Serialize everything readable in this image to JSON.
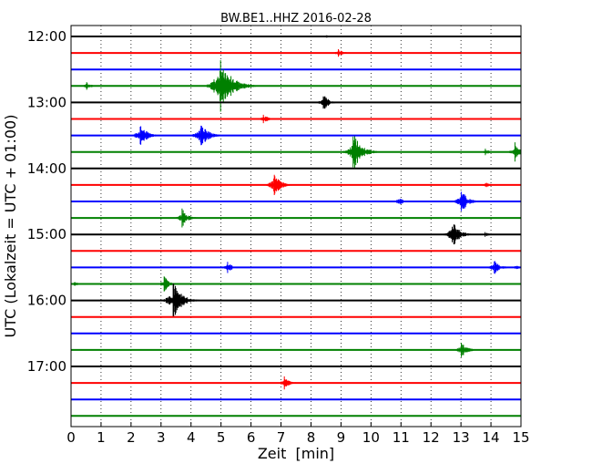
{
  "chart_data": {
    "type": "line",
    "title": "BW.BE1..HHZ 2016-02-28",
    "xlabel": "Zeit  [min]",
    "ylabel": "UTC (Lokalzeit = UTC + 01:00)",
    "xlim": [
      0,
      15
    ],
    "x_ticks": [
      0,
      1,
      2,
      3,
      4,
      5,
      6,
      7,
      8,
      9,
      10,
      11,
      12,
      13,
      14,
      15
    ],
    "y_tick_labels": [
      "12:00",
      "13:00",
      "14:00",
      "15:00",
      "16:00",
      "17:00"
    ],
    "trace_interval_minutes": 15,
    "grid": "vertical dotted at each minute",
    "traces": [
      {
        "start": "12:00",
        "color": "#000000",
        "events": [
          {
            "t": 8.5,
            "a": 2
          }
        ]
      },
      {
        "start": "12:15",
        "color": "#ff0000",
        "events": [
          {
            "t": 8.9,
            "a": 6
          }
        ]
      },
      {
        "start": "12:30",
        "color": "#0000ff",
        "events": []
      },
      {
        "start": "12:45",
        "color": "#008000",
        "events": [
          {
            "t": 0.5,
            "a": 5
          },
          {
            "t": 4.95,
            "a": 34
          }
        ]
      },
      {
        "start": "13:00",
        "color": "#000000",
        "events": [
          {
            "t": 8.4,
            "a": 10
          }
        ]
      },
      {
        "start": "13:15",
        "color": "#ff0000",
        "events": [
          {
            "t": 6.4,
            "a": 6
          }
        ]
      },
      {
        "start": "13:30",
        "color": "#0000ff",
        "events": [
          {
            "t": 2.3,
            "a": 14
          },
          {
            "t": 4.3,
            "a": 17
          }
        ]
      },
      {
        "start": "13:45",
        "color": "#008000",
        "events": [
          {
            "t": 9.4,
            "a": 22
          },
          {
            "t": 13.8,
            "a": 4
          },
          {
            "t": 14.8,
            "a": 11
          }
        ]
      },
      {
        "start": "14:00",
        "color": "#000000",
        "events": []
      },
      {
        "start": "14:15",
        "color": "#ff0000",
        "events": [
          {
            "t": 6.75,
            "a": 14
          },
          {
            "t": 13.8,
            "a": 4
          }
        ]
      },
      {
        "start": "14:30",
        "color": "#0000ff",
        "events": [
          {
            "t": 10.9,
            "a": 6
          },
          {
            "t": 13.0,
            "a": 14
          }
        ]
      },
      {
        "start": "14:45",
        "color": "#008000",
        "events": [
          {
            "t": 3.7,
            "a": 11
          }
        ]
      },
      {
        "start": "15:00",
        "color": "#000000",
        "events": [
          {
            "t": 12.7,
            "a": 16
          },
          {
            "t": 13.8,
            "a": 3
          }
        ]
      },
      {
        "start": "15:15",
        "color": "#ff0000",
        "events": []
      },
      {
        "start": "15:30",
        "color": "#0000ff",
        "events": [
          {
            "t": 5.2,
            "a": 7
          },
          {
            "t": 14.1,
            "a": 10
          },
          {
            "t": 14.8,
            "a": 3
          }
        ]
      },
      {
        "start": "15:45",
        "color": "#008000",
        "events": [
          {
            "t": 0.1,
            "a": 3
          },
          {
            "t": 3.1,
            "a": 9
          }
        ]
      },
      {
        "start": "16:00",
        "color": "#000000",
        "events": [
          {
            "t": 3.4,
            "a": 22
          }
        ]
      },
      {
        "start": "16:15",
        "color": "#ff0000",
        "events": []
      },
      {
        "start": "16:30",
        "color": "#0000ff",
        "events": []
      },
      {
        "start": "16:45",
        "color": "#008000",
        "events": [
          {
            "t": 13.0,
            "a": 10
          }
        ]
      },
      {
        "start": "17:00",
        "color": "#000000",
        "events": []
      },
      {
        "start": "17:15",
        "color": "#ff0000",
        "events": [
          {
            "t": 7.1,
            "a": 8
          }
        ]
      },
      {
        "start": "17:30",
        "color": "#0000ff",
        "events": []
      },
      {
        "start": "17:45",
        "color": "#008000",
        "events": []
      }
    ]
  }
}
